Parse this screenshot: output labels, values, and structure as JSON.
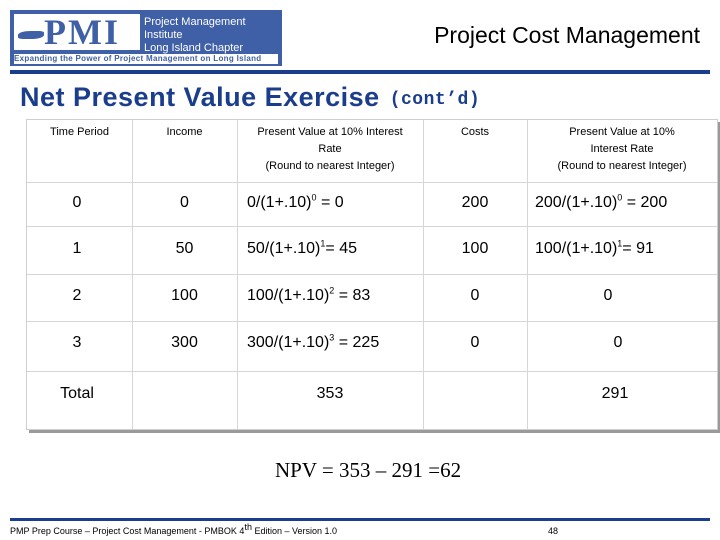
{
  "logo": {
    "mark": "PMI",
    "line1": "Project Management Institute",
    "line2": "Long Island Chapter",
    "tagline": "Expanding the Power of Project Management on Long Island"
  },
  "slide_title": "Project Cost Management",
  "heading": {
    "main": "Net Present Value Exercise",
    "cont": "(cont’d)"
  },
  "table": {
    "headers": {
      "time_period": "Time Period",
      "income": "Income",
      "pv_income": [
        "Present Value at 10% Interest",
        "Rate",
        "(Round to nearest Integer)"
      ],
      "costs": "Costs",
      "pv_costs": [
        "Present Value at 10%",
        "Interest Rate",
        "(Round to nearest Integer)"
      ]
    },
    "rows": [
      {
        "period": "0",
        "income": "0",
        "pv_base": "0/(1+.10)",
        "pv_exp": "0",
        "pv_rest": " = 0",
        "costs": "200",
        "cpv_base": "200/(1+.10)",
        "cpv_exp": "0",
        "cpv_rest": " = 200"
      },
      {
        "period": "1",
        "income": "50",
        "pv_base": "50/(1+.10)",
        "pv_exp": "1",
        "pv_rest": "= 45",
        "costs": "100",
        "cpv_base": "100/(1+.10)",
        "cpv_exp": "1",
        "cpv_rest": "= 91"
      },
      {
        "period": "2",
        "income": "100",
        "pv_base": "100/(1+.10)",
        "pv_exp": "2",
        "pv_rest": " = 83",
        "costs": "0",
        "cpv": "0"
      },
      {
        "period": "3",
        "income": "300",
        "pv_base": "300/(1+.10)",
        "pv_exp": "3",
        "pv_rest": " = 225",
        "costs": "0",
        "cpv": "0"
      }
    ],
    "total": {
      "label": "Total",
      "pv_income": "353",
      "pv_costs": "291"
    }
  },
  "npv": "NPV = 353 – 291 =62",
  "footer": {
    "text": "PMP Prep Course – Project Cost Management - PMBOK 4",
    "sup": "th",
    "text2": " Edition – Version 1.0",
    "page": "48"
  }
}
